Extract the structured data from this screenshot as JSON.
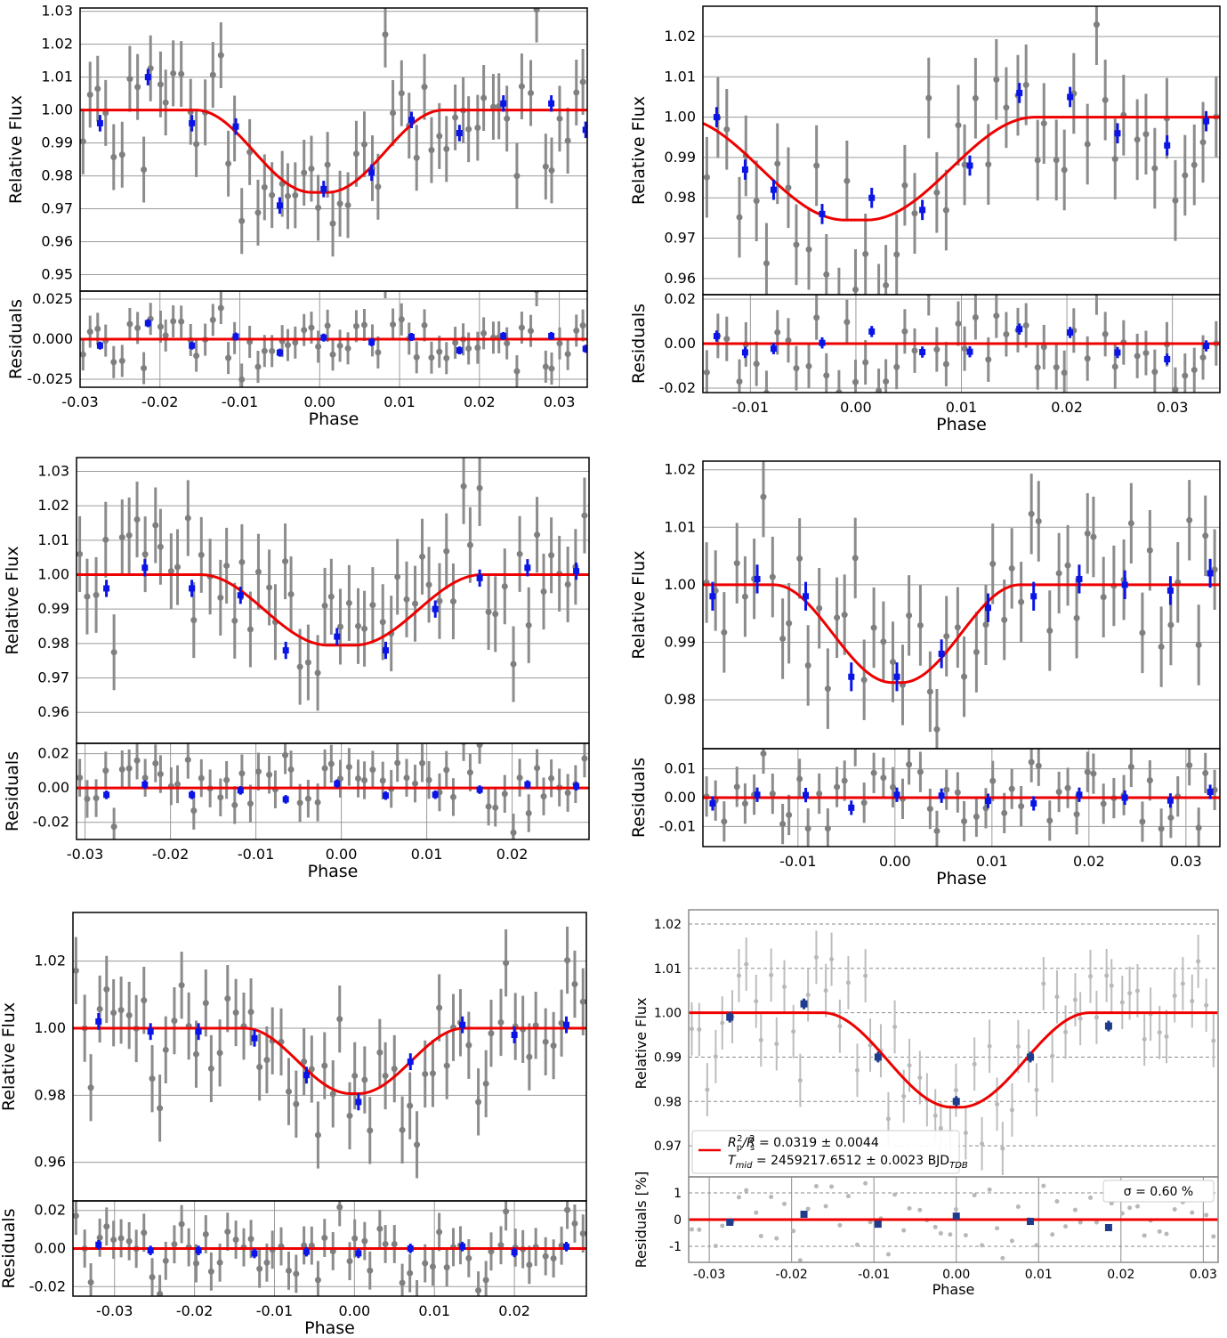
{
  "chart_data": [
    {
      "type": "scatter",
      "xlabel": "Phase",
      "ylabel": "Relative Flux",
      "res_ylabel": "Residuals",
      "xlim": [
        -0.03,
        0.0335
      ],
      "ylim": [
        0.945,
        1.031
      ],
      "res_ylim": [
        -0.03,
        0.03
      ],
      "xticks": [
        "-0.03",
        "-0.02",
        "-0.01",
        "0.00",
        "0.01",
        "0.02",
        "0.03"
      ],
      "xtick_values": [
        -0.03,
        -0.02,
        -0.01,
        0.0,
        0.01,
        0.02,
        0.03
      ],
      "yticks": [
        "0.95",
        "0.96",
        "0.97",
        "0.98",
        "0.99",
        "1.00",
        "1.01",
        "1.02",
        "1.03"
      ],
      "ytick_values": [
        0.95,
        0.96,
        0.97,
        0.98,
        0.99,
        1.0,
        1.01,
        1.02,
        1.03
      ],
      "res_yticks": [
        "-0.025",
        "0.000",
        "0.025"
      ],
      "res_ytick_values": [
        -0.025,
        0.0,
        0.025
      ],
      "grid": true,
      "model": {
        "depth": 0.025,
        "center": 0.0,
        "t14": 0.031,
        "t23": 0.002
      },
      "binned_x": [
        -0.0275,
        -0.0215,
        -0.016,
        -0.0105,
        -0.005,
        0.0005,
        0.0065,
        0.0115,
        0.0175,
        0.023,
        0.029,
        0.0333
      ],
      "binned_y": [
        0.996,
        1.01,
        0.996,
        0.995,
        0.971,
        0.976,
        0.981,
        0.997,
        0.993,
        1.002,
        1.002,
        0.994
      ],
      "seed": 11,
      "scatter_sd": 0.01,
      "err": 0.01
    },
    {
      "type": "scatter",
      "xlabel": "Phase",
      "ylabel": "Relative Flux",
      "res_ylabel": "Residuals",
      "xlim": [
        -0.0145,
        0.0345
      ],
      "ylim": [
        0.956,
        1.0275
      ],
      "res_ylim": [
        -0.022,
        0.022
      ],
      "xticks": [
        "-0.01",
        "0.00",
        "0.01",
        "0.02",
        "0.03"
      ],
      "xtick_values": [
        -0.01,
        0.0,
        0.01,
        0.02,
        0.03
      ],
      "yticks": [
        "0.96",
        "0.97",
        "0.98",
        "0.99",
        "1.00",
        "1.01",
        "1.02"
      ],
      "ytick_values": [
        0.96,
        0.97,
        0.98,
        0.99,
        1.0,
        1.01,
        1.02
      ],
      "res_yticks": [
        "-0.02",
        "0.00",
        "0.02"
      ],
      "res_ytick_values": [
        -0.02,
        0.0,
        0.02
      ],
      "grid": true,
      "model": {
        "depth": 0.0255,
        "center": 0.0,
        "t14": 0.034,
        "t23": 0.002
      },
      "binned_x": [
        -0.0132,
        -0.0105,
        -0.0078,
        -0.0032,
        0.0015,
        0.0063,
        0.0108,
        0.0155,
        0.0203,
        0.0248,
        0.0295,
        0.0332
      ],
      "binned_y": [
        1.0,
        0.987,
        0.982,
        0.976,
        0.98,
        0.977,
        0.988,
        1.006,
        1.005,
        0.996,
        0.993,
        0.999
      ],
      "seed": 23,
      "scatter_sd": 0.01,
      "err": 0.01
    },
    {
      "type": "scatter",
      "xlabel": "Phase",
      "ylabel": "Relative Flux",
      "res_ylabel": "Residuals",
      "xlim": [
        -0.031,
        0.029
      ],
      "ylim": [
        0.951,
        1.034
      ],
      "res_ylim": [
        -0.03,
        0.026
      ],
      "xticks": [
        "-0.03",
        "-0.02",
        "-0.01",
        "0.00",
        "0.01",
        "0.02"
      ],
      "xtick_values": [
        -0.03,
        -0.02,
        -0.01,
        0.0,
        0.01,
        0.02
      ],
      "yticks": [
        "0.96",
        "0.97",
        "0.98",
        "0.99",
        "1.00",
        "1.01",
        "1.02",
        "1.03"
      ],
      "ytick_values": [
        0.96,
        0.97,
        0.98,
        0.99,
        1.0,
        1.01,
        1.02,
        1.03
      ],
      "res_yticks": [
        "-0.02",
        "0.00",
        "0.02"
      ],
      "res_ytick_values": [
        -0.02,
        0.0,
        0.02
      ],
      "grid": true,
      "model": {
        "depth": 0.0205,
        "center": 0.0,
        "t14": 0.033,
        "t23": 0.003
      },
      "binned_x": [
        -0.0275,
        -0.023,
        -0.0175,
        -0.0118,
        -0.0065,
        -0.0005,
        0.0052,
        0.011,
        0.0162,
        0.0218,
        0.0275
      ],
      "binned_y": [
        0.996,
        1.002,
        0.996,
        0.994,
        0.978,
        0.982,
        0.978,
        0.99,
        0.999,
        1.002,
        1.001
      ],
      "seed": 37,
      "scatter_sd": 0.011,
      "err": 0.011
    },
    {
      "type": "scatter",
      "xlabel": "Phase",
      "ylabel": "Relative Flux",
      "res_ylabel": "Residuals",
      "xlim": [
        -0.0198,
        0.0335
      ],
      "ylim": [
        0.9715,
        1.0215
      ],
      "res_ylim": [
        -0.017,
        0.017
      ],
      "xticks": [
        "-0.01",
        "0.00",
        "0.01",
        "0.02",
        "0.03"
      ],
      "xtick_values": [
        -0.01,
        0.0,
        0.01,
        0.02,
        0.03
      ],
      "yticks": [
        "0.98",
        "0.99",
        "1.00",
        "1.01",
        "1.02"
      ],
      "ytick_values": [
        0.98,
        0.99,
        1.0,
        1.01,
        1.02
      ],
      "res_yticks": [
        "-0.01",
        "0.00",
        "0.01"
      ],
      "res_ytick_values": [
        -0.01,
        0.0,
        0.01
      ],
      "grid": true,
      "model": {
        "depth": 0.017,
        "center": 0.0002,
        "t14": 0.0254,
        "t23": 0.001
      },
      "binned_x": [
        -0.0188,
        -0.0142,
        -0.0092,
        -0.0045,
        0.0002,
        0.0048,
        0.0096,
        0.0143,
        0.019,
        0.0237,
        0.0284,
        0.0325
      ],
      "binned_y": [
        0.998,
        1.001,
        0.998,
        0.984,
        0.984,
        0.988,
        0.996,
        0.998,
        1.001,
        1.0,
        0.999,
        1.002
      ],
      "seed": 41,
      "scatter_sd": 0.007,
      "err": 0.007
    },
    {
      "type": "scatter",
      "xlabel": "Phase",
      "ylabel": "Relative Flux",
      "res_ylabel": "Residuals",
      "xlim": [
        -0.0352,
        0.029
      ],
      "ylim": [
        0.9485,
        1.0345
      ],
      "res_ylim": [
        -0.025,
        0.025
      ],
      "xticks": [
        "-0.03",
        "-0.02",
        "-0.01",
        "0.00",
        "0.01",
        "0.02"
      ],
      "xtick_values": [
        -0.03,
        -0.02,
        -0.01,
        0.0,
        0.01,
        0.02
      ],
      "yticks": [
        "0.96",
        "0.98",
        "1.00",
        "1.02"
      ],
      "ytick_values": [
        0.96,
        0.98,
        1.0,
        1.02
      ],
      "res_yticks": [
        "-0.02",
        "0.00",
        "0.02"
      ],
      "res_ytick_values": [
        -0.02,
        0.0,
        0.02
      ],
      "grid": true,
      "model": {
        "depth": 0.0195,
        "center": 0.0,
        "t14": 0.0275,
        "t23": 0.001
      },
      "binned_x": [
        -0.032,
        -0.0255,
        -0.0195,
        -0.0125,
        -0.006,
        0.0005,
        0.007,
        0.0135,
        0.02,
        0.0265
      ],
      "binned_y": [
        1.002,
        0.999,
        0.999,
        0.997,
        0.986,
        0.978,
        0.99,
        1.001,
        0.998,
        1.001
      ],
      "seed": 53,
      "scatter_sd": 0.01,
      "err": 0.01
    },
    {
      "type": "scatter",
      "xlabel": "Phase",
      "ylabel": "Relative Flux",
      "res_ylabel": "Residuals [%]",
      "xlim": [
        -0.0325,
        0.0318
      ],
      "ylim": [
        0.963,
        1.0232
      ],
      "res_ylim": [
        -1.6,
        1.6
      ],
      "xticks": [
        "-0.03",
        "-0.02",
        "-0.01",
        "0.00",
        "0.01",
        "0.02",
        "0.03"
      ],
      "xtick_values": [
        -0.03,
        -0.02,
        -0.01,
        0.0,
        0.01,
        0.02,
        0.03
      ],
      "yticks": [
        "0.97",
        "0.98",
        "0.99",
        "1.00",
        "1.01",
        "1.02"
      ],
      "ytick_values": [
        0.97,
        0.98,
        0.99,
        1.0,
        1.01,
        1.02
      ],
      "res_yticks": [
        "-1",
        "0",
        "1"
      ],
      "res_ytick_values": [
        -1,
        0,
        1
      ],
      "grid": true,
      "grid_style": "dashed",
      "model": {
        "depth": 0.0213,
        "center": 0.0,
        "t14": 0.0325,
        "t23": 0.001
      },
      "binned_x": [
        -0.0275,
        -0.0185,
        -0.0095,
        0.0,
        0.009,
        0.0185
      ],
      "binned_y": [
        0.999,
        1.002,
        0.99,
        0.98,
        0.99,
        0.997
      ],
      "seed": 67,
      "scatter_sd": 0.0075,
      "err": 0.006,
      "legend": {
        "line1_a": "R",
        "line1_b": "p",
        "line1_c": "2",
        "line1_d": "/R",
        "line1_e": "s",
        "line1_f": "2",
        "line1_g": " = 0.0319 ± 0.0044",
        "line2_a": "T",
        "line2_b": "mid",
        "line2_c": " = 2459217.6512 ± 0.0023 BJD",
        "line2_d": "TDB"
      },
      "sigma_label": "σ = 0.60 %"
    }
  ],
  "colors": {
    "model": "#ee0000",
    "binned": "#0a14e6",
    "binned_dark": "#1f3b8c",
    "raw": "#7f7f7f",
    "grid": "#9a9a9a"
  }
}
